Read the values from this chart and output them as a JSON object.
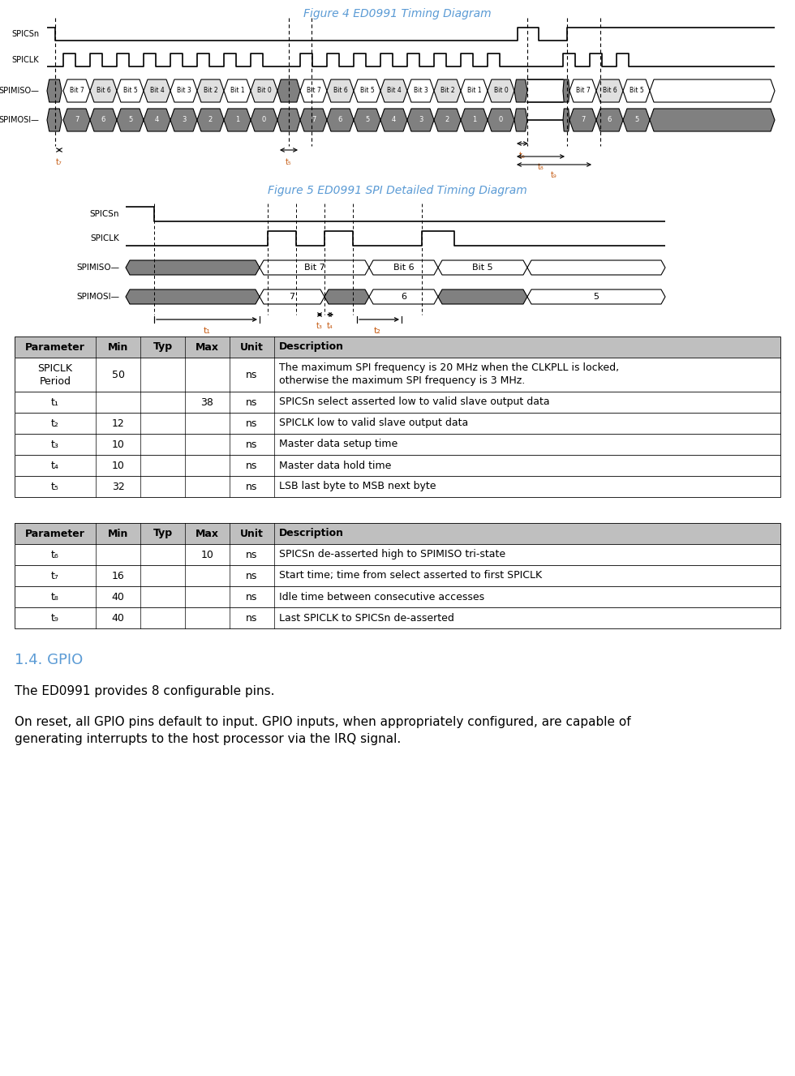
{
  "fig4_title": "Figure 4 ED0991 Timing Diagram",
  "fig5_title": "Figure 5 ED0991 SPI Detailed Timing Diagram",
  "title_color": "#5B9BD5",
  "title_fontsize": 10,
  "signal_line_color": "#000000",
  "timing_label_color": "#C55A11",
  "gray_fill": "#808080",
  "table1_header": [
    "Parameter",
    "Min",
    "Typ",
    "Max",
    "Unit",
    "Description"
  ],
  "table1_rows": [
    [
      "SPICLK\nPeriod",
      "50",
      "",
      "",
      "ns",
      "The maximum SPI frequency is 20 MHz when the CLKPLL is locked,\notherwise the maximum SPI frequency is 3 MHz."
    ],
    [
      "t₁",
      "",
      "",
      "38",
      "ns",
      "SPICSn select asserted low to valid slave output data"
    ],
    [
      "t₂",
      "12",
      "",
      "",
      "ns",
      "SPICLK low to valid slave output data"
    ],
    [
      "t₃",
      "10",
      "",
      "",
      "ns",
      "Master data setup time"
    ],
    [
      "t₄",
      "10",
      "",
      "",
      "ns",
      "Master data hold time"
    ],
    [
      "t₅",
      "32",
      "",
      "",
      "ns",
      "LSB last byte to MSB next byte"
    ]
  ],
  "table2_header": [
    "Parameter",
    "Min",
    "Typ",
    "Max",
    "Unit",
    "Description"
  ],
  "table2_rows": [
    [
      "t₆",
      "",
      "",
      "10",
      "ns",
      "SPICSn de-asserted high to SPIMISO tri-state"
    ],
    [
      "t₇",
      "16",
      "",
      "",
      "ns",
      "Start time; time from select asserted to first SPICLK"
    ],
    [
      "t₈",
      "40",
      "",
      "",
      "ns",
      "Idle time between consecutive accesses"
    ],
    [
      "t₉",
      "40",
      "",
      "",
      "ns",
      "Last SPICLK to SPICSn de-asserted"
    ]
  ],
  "gpio_heading": "1.4. GPIO",
  "gpio_heading_color": "#5B9BD5",
  "gpio_text1": "The ED0991 provides 8 configurable pins.",
  "gpio_text2": "On reset, all GPIO pins default to input. GPIO inputs, when appropriately configured, are capable of\ngenerating interrupts to the host processor via the IRQ signal.",
  "header_bg": "#BFBFBF",
  "font_size_table": 9
}
